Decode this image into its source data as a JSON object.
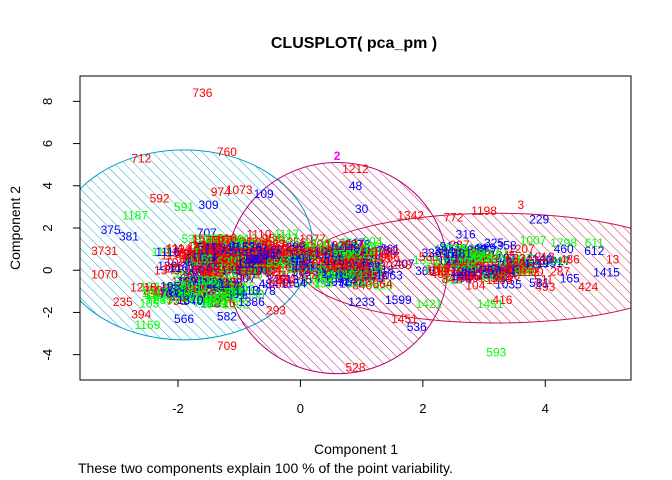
{
  "chart_data": {
    "type": "scatter",
    "title": "CLUSPLOT( pca_pm )",
    "xlabel": "Component 1",
    "ylabel": "Component 2",
    "subtitle": "These two components explain 100 % of the point variability.",
    "xlim": [
      -3.6,
      5.4
    ],
    "ylim": [
      -5.2,
      9.2
    ],
    "xticks": [
      -2,
      0,
      2,
      4
    ],
    "yticks": [
      -4,
      -2,
      0,
      2,
      4,
      6,
      8
    ],
    "grid": false,
    "colors": {
      "label_palette": [
        "#ff0000",
        "#00ff00",
        "#0000ff"
      ],
      "ellipse_cluster_1": "#00a0c8",
      "ellipse_cluster_2": "#b8007a",
      "ellipse_cluster_3": "#c8104a",
      "cluster_marker": "#ff00ff"
    },
    "clusters": [
      {
        "id": 1,
        "center": [
          -1.9,
          1.2
        ],
        "semi_axes": [
          2.1,
          4.5
        ],
        "rotation_deg": 0
      },
      {
        "id": 2,
        "center": [
          0.6,
          0.1
        ],
        "semi_axes": [
          1.8,
          5.0
        ],
        "rotation_deg": 0
      },
      {
        "id": 3,
        "center": [
          3.2,
          0.1
        ],
        "semi_axes": [
          3.2,
          2.6
        ],
        "rotation_deg": 0
      }
    ],
    "cluster_marker_labels": [
      {
        "text": "2",
        "x": 0.6,
        "y": 5.4
      }
    ],
    "labeled_points": [
      {
        "text": "736",
        "x": -1.6,
        "y": 8.4,
        "color": 0
      },
      {
        "text": "712",
        "x": -2.6,
        "y": 5.3,
        "color": 0
      },
      {
        "text": "760",
        "x": -1.2,
        "y": 5.6,
        "color": 0
      },
      {
        "text": "592",
        "x": -2.3,
        "y": 3.4,
        "color": 0
      },
      {
        "text": "1187",
        "x": -2.7,
        "y": 2.6,
        "color": 1
      },
      {
        "text": "591",
        "x": -1.9,
        "y": 3.0,
        "color": 1
      },
      {
        "text": "375",
        "x": -3.1,
        "y": 1.9,
        "color": 2
      },
      {
        "text": "381",
        "x": -2.8,
        "y": 1.6,
        "color": 2
      },
      {
        "text": "3731",
        "x": -3.2,
        "y": 0.9,
        "color": 0
      },
      {
        "text": "1070",
        "x": -3.2,
        "y": -0.2,
        "color": 0
      },
      {
        "text": "235",
        "x": -2.9,
        "y": -1.5,
        "color": 0
      },
      {
        "text": "394",
        "x": -2.6,
        "y": -2.1,
        "color": 0
      },
      {
        "text": "1169",
        "x": -2.5,
        "y": -2.6,
        "color": 1
      },
      {
        "text": "566",
        "x": -1.9,
        "y": -2.3,
        "color": 2
      },
      {
        "text": "582",
        "x": -1.2,
        "y": -2.2,
        "color": 2
      },
      {
        "text": "709",
        "x": -1.2,
        "y": -3.6,
        "color": 0
      },
      {
        "text": "974",
        "x": -1.3,
        "y": 3.7,
        "color": 0
      },
      {
        "text": "1073",
        "x": -1.0,
        "y": 3.8,
        "color": 0
      },
      {
        "text": "109",
        "x": -0.6,
        "y": 3.6,
        "color": 2
      },
      {
        "text": "309",
        "x": -1.5,
        "y": 3.1,
        "color": 2
      },
      {
        "text": "1212",
        "x": 0.9,
        "y": 4.8,
        "color": 0
      },
      {
        "text": "48",
        "x": 0.9,
        "y": 4.0,
        "color": 2
      },
      {
        "text": "1342",
        "x": 1.8,
        "y": 2.6,
        "color": 0
      },
      {
        "text": "30",
        "x": 1.0,
        "y": 2.9,
        "color": 2
      },
      {
        "text": "772",
        "x": 2.5,
        "y": 2.5,
        "color": 0
      },
      {
        "text": "1198",
        "x": 3.0,
        "y": 2.8,
        "color": 0
      },
      {
        "text": "3",
        "x": 3.6,
        "y": 3.1,
        "color": 0
      },
      {
        "text": "229",
        "x": 3.9,
        "y": 2.4,
        "color": 2
      },
      {
        "text": "316",
        "x": 2.7,
        "y": 1.7,
        "color": 2
      },
      {
        "text": "1007",
        "x": 3.8,
        "y": 1.4,
        "color": 1
      },
      {
        "text": "1798",
        "x": 4.3,
        "y": 1.3,
        "color": 1
      },
      {
        "text": "611",
        "x": 4.8,
        "y": 1.3,
        "color": 1
      },
      {
        "text": "460",
        "x": 4.3,
        "y": 1.0,
        "color": 2
      },
      {
        "text": "612",
        "x": 4.8,
        "y": 0.9,
        "color": 2
      },
      {
        "text": "13",
        "x": 5.1,
        "y": 0.5,
        "color": 0
      },
      {
        "text": "1415",
        "x": 5.0,
        "y": -0.1,
        "color": 2
      },
      {
        "text": "424",
        "x": 4.7,
        "y": -0.8,
        "color": 0
      },
      {
        "text": "486",
        "x": 4.4,
        "y": 0.5,
        "color": 0
      },
      {
        "text": "165",
        "x": 4.4,
        "y": -0.4,
        "color": 2
      },
      {
        "text": "493",
        "x": 4.0,
        "y": -0.8,
        "color": 0
      },
      {
        "text": "581",
        "x": 3.9,
        "y": -0.6,
        "color": 2
      },
      {
        "text": "416",
        "x": 3.3,
        "y": -1.4,
        "color": 0
      },
      {
        "text": "1451",
        "x": 3.1,
        "y": -1.6,
        "color": 1
      },
      {
        "text": "593",
        "x": 3.2,
        "y": -3.9,
        "color": 1
      },
      {
        "text": "528",
        "x": 0.9,
        "y": -4.6,
        "color": 0
      },
      {
        "text": "536",
        "x": 1.9,
        "y": -2.7,
        "color": 2
      },
      {
        "text": "1451",
        "x": 1.7,
        "y": -2.3,
        "color": 0
      },
      {
        "text": "1421",
        "x": 2.1,
        "y": -1.6,
        "color": 1
      },
      {
        "text": "293",
        "x": -0.4,
        "y": -1.9,
        "color": 0
      },
      {
        "text": "1386",
        "x": -0.8,
        "y": -1.5,
        "color": 2
      },
      {
        "text": "1370",
        "x": -1.8,
        "y": -1.4,
        "color": 2
      },
      {
        "text": "1233",
        "x": 1.0,
        "y": -1.5,
        "color": 2
      },
      {
        "text": "1599",
        "x": 1.6,
        "y": -1.4,
        "color": 2
      }
    ]
  }
}
